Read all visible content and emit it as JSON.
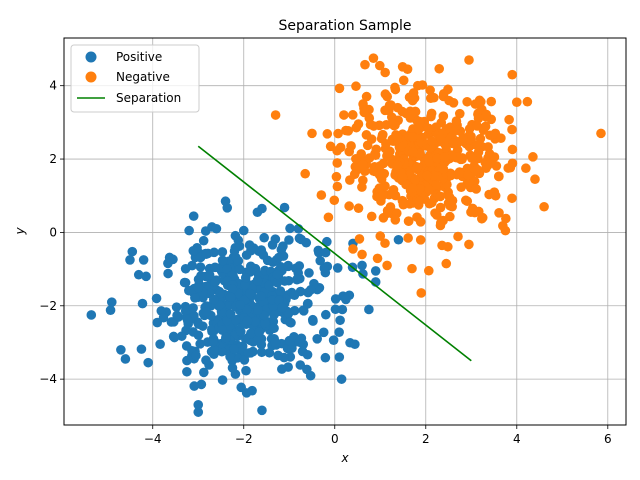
{
  "chart_data": {
    "type": "scatter",
    "title": "Separation Sample",
    "xlabel": "x",
    "ylabel": "y",
    "xlim": [
      -5.95,
      6.4
    ],
    "ylim": [
      -5.25,
      5.3
    ],
    "xticks": [
      -4,
      -2,
      0,
      2,
      4,
      6
    ],
    "yticks": [
      -4,
      -2,
      0,
      2,
      4
    ],
    "grid": true,
    "legend_position": "top-left",
    "series": [
      {
        "name": "Positive",
        "kind": "scatter",
        "color": "#1f77b4",
        "center": [
          -2.0,
          -2.0
        ],
        "spread": 0.9,
        "count": 500,
        "highlight_points": [
          [
            -5.35,
            -2.25
          ],
          [
            -4.9,
            -1.9
          ],
          [
            -4.7,
            -3.2
          ],
          [
            -4.6,
            -3.45
          ],
          [
            -4.5,
            -0.75
          ],
          [
            -4.2,
            -0.75
          ],
          [
            -4.1,
            -3.55
          ],
          [
            -3.0,
            -4.9
          ],
          [
            -3.0,
            -4.7
          ],
          [
            -1.6,
            -4.85
          ],
          [
            -2.4,
            0.85
          ],
          [
            -1.7,
            0.55
          ],
          [
            -1.6,
            0.65
          ],
          [
            -2.7,
            0.15
          ],
          [
            -2.6,
            0.1
          ],
          [
            -3.2,
            0.05
          ],
          [
            -2.0,
            0.05
          ],
          [
            -0.8,
            0.1
          ],
          [
            0.15,
            -4.0
          ],
          [
            0.1,
            -3.4
          ],
          [
            0.6,
            -0.9
          ],
          [
            0.9,
            -1.05
          ],
          [
            0.9,
            -1.35
          ],
          [
            0.75,
            -2.1
          ],
          [
            1.4,
            -0.2
          ],
          [
            0.4,
            -0.3
          ],
          [
            -0.35,
            -0.55
          ],
          [
            -0.2,
            -0.55
          ]
        ]
      },
      {
        "name": "Negative",
        "kind": "scatter",
        "color": "#ff7f0e",
        "center": [
          2.0,
          2.0
        ],
        "spread": 0.9,
        "count": 500,
        "highlight_points": [
          [
            5.85,
            2.7
          ],
          [
            0.85,
            4.75
          ],
          [
            1.6,
            4.45
          ],
          [
            2.95,
            4.7
          ],
          [
            3.9,
            4.3
          ],
          [
            -1.3,
            3.2
          ],
          [
            -0.5,
            2.7
          ],
          [
            -0.65,
            1.6
          ],
          [
            0.4,
            -0.45
          ],
          [
            1.15,
            -0.9
          ],
          [
            1.9,
            -1.65
          ],
          [
            2.45,
            -0.85
          ],
          [
            4.6,
            0.7
          ],
          [
            4.4,
            1.45
          ],
          [
            4.2,
            1.75
          ],
          [
            3.75,
            0.05
          ],
          [
            1.0,
            -0.1
          ],
          [
            0.6,
            -0.6
          ],
          [
            4.0,
            3.55
          ],
          [
            0.2,
            3.2
          ]
        ]
      },
      {
        "name": "Separation",
        "kind": "line",
        "color": "#008000",
        "x": [
          -3.0,
          3.0
        ],
        "y": [
          2.35,
          -3.5
        ]
      }
    ]
  }
}
